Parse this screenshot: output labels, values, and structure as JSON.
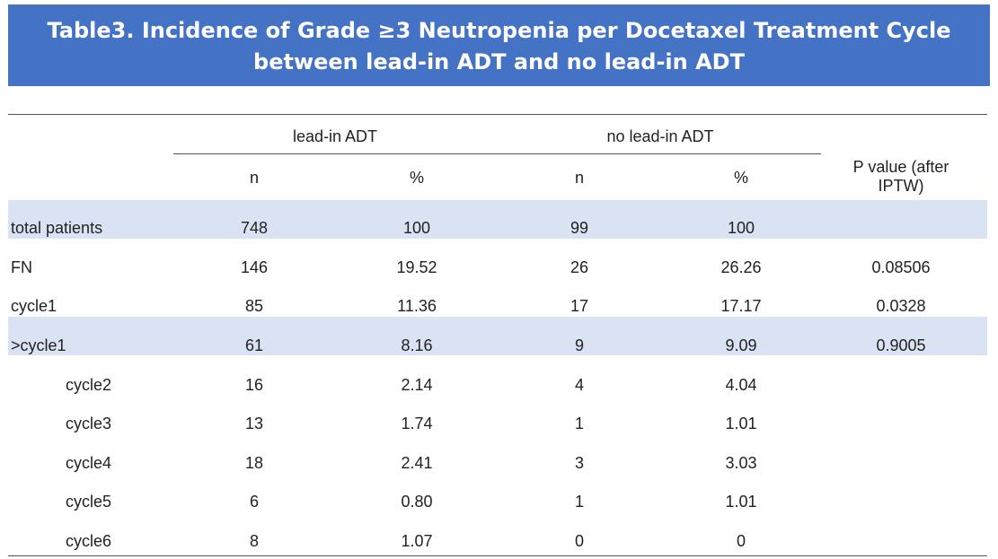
{
  "title": {
    "line1": "Table3. Incidence of Grade ≥3 Neutropenia per Docetaxel Treatment Cycle",
    "line2": "between lead-in ADT and no lead-in ADT"
  },
  "colors": {
    "banner": "#4472c4",
    "row_shade": "#dae3f3"
  },
  "header": {
    "group_lead": "lead-in ADT",
    "group_nolead": "no lead-in ADT",
    "n": "n",
    "pct": "%",
    "pvalue_line1": "P value (after",
    "pvalue_line2": "IPTW)"
  },
  "rows": [
    {
      "label": "total patients",
      "lead_n": "748",
      "lead_pct": "100",
      "nolead_n": "99",
      "nolead_pct": "100",
      "p": ""
    },
    {
      "label": "FN",
      "lead_n": "146",
      "lead_pct": "19.52",
      "nolead_n": "26",
      "nolead_pct": "26.26",
      "p": "0.08506"
    },
    {
      "label": "cycle1",
      "lead_n": "85",
      "lead_pct": "11.36",
      "nolead_n": "17",
      "nolead_pct": "17.17",
      "p": "0.0328"
    },
    {
      "label": ">cycle1",
      "lead_n": "61",
      "lead_pct": "8.16",
      "nolead_n": "9",
      "nolead_pct": "9.09",
      "p": "0.9005"
    },
    {
      "label": "cycle2",
      "lead_n": "16",
      "lead_pct": "2.14",
      "nolead_n": "4",
      "nolead_pct": "4.04",
      "p": ""
    },
    {
      "label": "cycle3",
      "lead_n": "13",
      "lead_pct": "1.74",
      "nolead_n": "1",
      "nolead_pct": "1.01",
      "p": ""
    },
    {
      "label": "cycle4",
      "lead_n": "18",
      "lead_pct": "2.41",
      "nolead_n": "3",
      "nolead_pct": "3.03",
      "p": ""
    },
    {
      "label": "cycle5",
      "lead_n": "6",
      "lead_pct": "0.80",
      "nolead_n": "1",
      "nolead_pct": "1.01",
      "p": ""
    },
    {
      "label": "cycle6",
      "lead_n": "8",
      "lead_pct": "1.07",
      "nolead_n": "0",
      "nolead_pct": "0",
      "p": ""
    }
  ]
}
